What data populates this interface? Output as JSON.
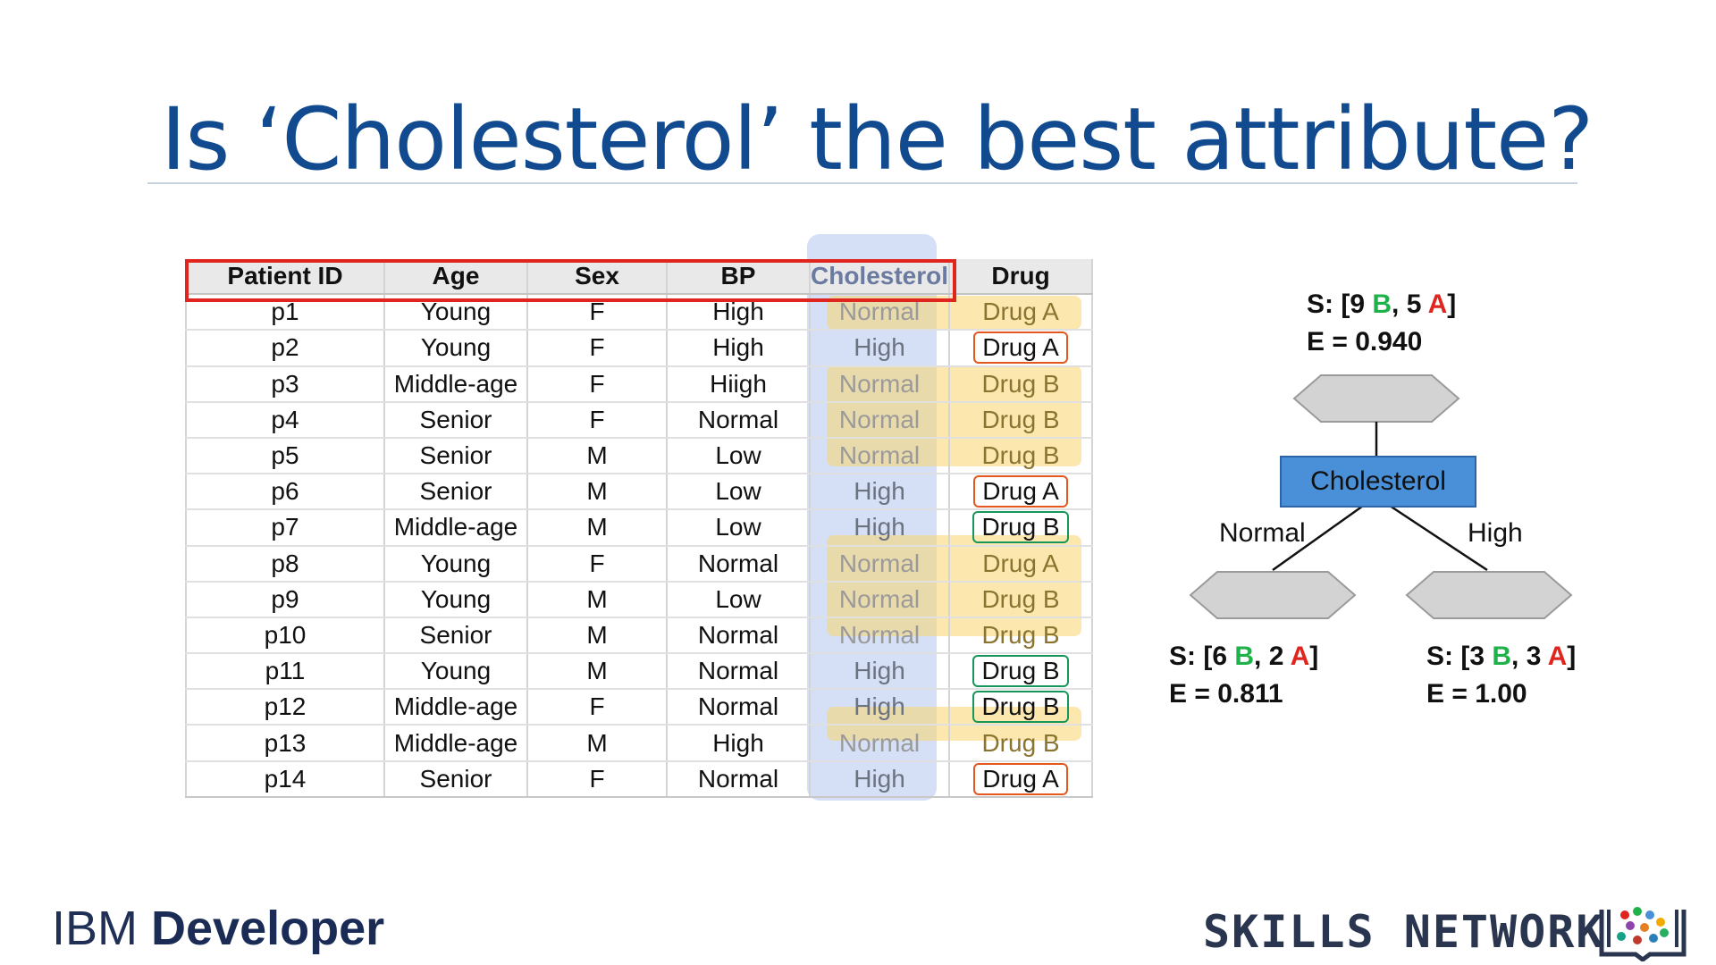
{
  "title": "Is ‘Cholesterol’ the best attribute?",
  "table": {
    "headers": [
      "Patient ID",
      "Age",
      "Sex",
      "BP",
      "Cholesterol",
      "Drug"
    ],
    "rows": [
      [
        "p1",
        "Young",
        "F",
        "High",
        "Normal",
        "Drug A"
      ],
      [
        "p2",
        "Young",
        "F",
        "High",
        "High",
        "Drug A"
      ],
      [
        "p3",
        "Middle-age",
        "F",
        "Hiigh",
        "Normal",
        "Drug B"
      ],
      [
        "p4",
        "Senior",
        "F",
        "Normal",
        "Normal",
        "Drug B"
      ],
      [
        "p5",
        "Senior",
        "M",
        "Low",
        "Normal",
        "Drug B"
      ],
      [
        "p6",
        "Senior",
        "M",
        "Low",
        "High",
        "Drug A"
      ],
      [
        "p7",
        "Middle-age",
        "M",
        "Low",
        "High",
        "Drug B"
      ],
      [
        "p8",
        "Young",
        "F",
        "Normal",
        "Normal",
        "Drug A"
      ],
      [
        "p9",
        "Young",
        "M",
        "Low",
        "Normal",
        "Drug B"
      ],
      [
        "p10",
        "Senior",
        "M",
        "Normal",
        "Normal",
        "Drug B"
      ],
      [
        "p11",
        "Young",
        "M",
        "Normal",
        "High",
        "Drug B"
      ],
      [
        "p12",
        "Middle-age",
        "F",
        "Normal",
        "High",
        "Drug B"
      ],
      [
        "p13",
        "Middle-age",
        "M",
        "High",
        "Normal",
        "Drug B"
      ],
      [
        "p14",
        "Senior",
        "F",
        "Normal",
        "High",
        "Drug A"
      ]
    ]
  },
  "tree": {
    "root": {
      "s_prefix": "S: [",
      "b_count": "9",
      "b_label": "B",
      "sep": ", ",
      "a_count": "5",
      "a_label": "A",
      "s_suffix": "]",
      "entropy": "E = 0.940"
    },
    "split_label": "Cholesterol",
    "branches": {
      "left": "Normal",
      "right": "High"
    },
    "left": {
      "s_prefix": "S: [",
      "b_count": "6",
      "b_label": "B",
      "sep": ", ",
      "a_count": "2",
      "a_label": "A",
      "s_suffix": "]",
      "entropy": "E = 0.811"
    },
    "right": {
      "s_prefix": "S: [",
      "b_count": "3",
      "b_label": "B",
      "sep": ", ",
      "a_count": "3",
      "a_label": "A",
      "s_suffix": "]",
      "entropy": "E = 1.00"
    }
  },
  "footer": {
    "brand_light": "IBM",
    "brand_bold": "Developer",
    "network": "SKILLS NETWORK"
  },
  "colors": {
    "title": "#114a8f",
    "b_green": "#20b24a",
    "a_red": "#e0251f",
    "node_blue": "#4a90d9",
    "header_outline": "#e0251f"
  }
}
